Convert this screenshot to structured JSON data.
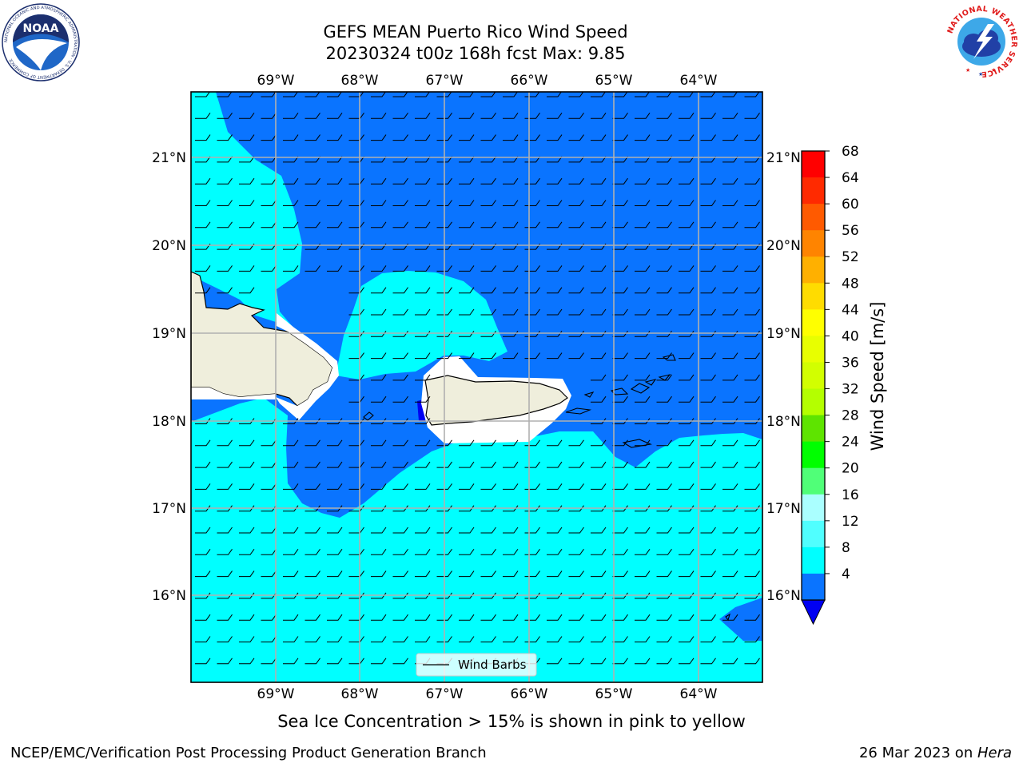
{
  "title": {
    "line1": "GEFS MEAN Puerto Rico Wind Speed",
    "line2": "20230324 t00z 168h fcst   Max: 9.85"
  },
  "map": {
    "lon_labels": [
      "69°W",
      "68°W",
      "67°W",
      "66°W",
      "65°W",
      "64°W"
    ],
    "lat_labels": [
      "21°N",
      "20°N",
      "19°N",
      "18°N",
      "17°N",
      "16°N"
    ],
    "legend_label": "Wind Barbs",
    "colors": {
      "ocean_4_8": "#0a74ff",
      "ocean_8_12": "#00ffff",
      "below_4": "#0000f2",
      "land": "#efeedc",
      "grid": "#b0b0b0"
    }
  },
  "colorbar": {
    "label": "Wind Speed [m/s]",
    "ticks": [
      "68",
      "64",
      "60",
      "56",
      "52",
      "48",
      "44",
      "40",
      "36",
      "32",
      "28",
      "24",
      "20",
      "16",
      "12",
      "8",
      "4"
    ],
    "colors": [
      "#ff0000",
      "#ff2a00",
      "#ff5a00",
      "#ff8400",
      "#ffb000",
      "#ffdc00",
      "#ffff00",
      "#e8ff00",
      "#d2ff00",
      "#b4ff00",
      "#5ee400",
      "#00ff00",
      "#50ff78",
      "#aaffff",
      "#50ffff",
      "#00ffff",
      "#0a74ff"
    ],
    "extend_color": "#0000f2"
  },
  "logos": {
    "noaa_text": "NOAA",
    "noaa_ring": "NATIONAL OCEANIC AND ATMOSPHERIC ADMINISTRATION · U.S. DEPARTMENT OF COMMERCE",
    "nws_ring": "NATIONAL WEATHER SERVICE"
  },
  "footer": {
    "note": "Sea Ice Concentration > 15% is shown in pink to yellow",
    "left": "NCEP/EMC/Verification Post Processing Product Generation Branch",
    "right_prefix": "26 Mar 2023 on ",
    "right_host": "Hera"
  }
}
